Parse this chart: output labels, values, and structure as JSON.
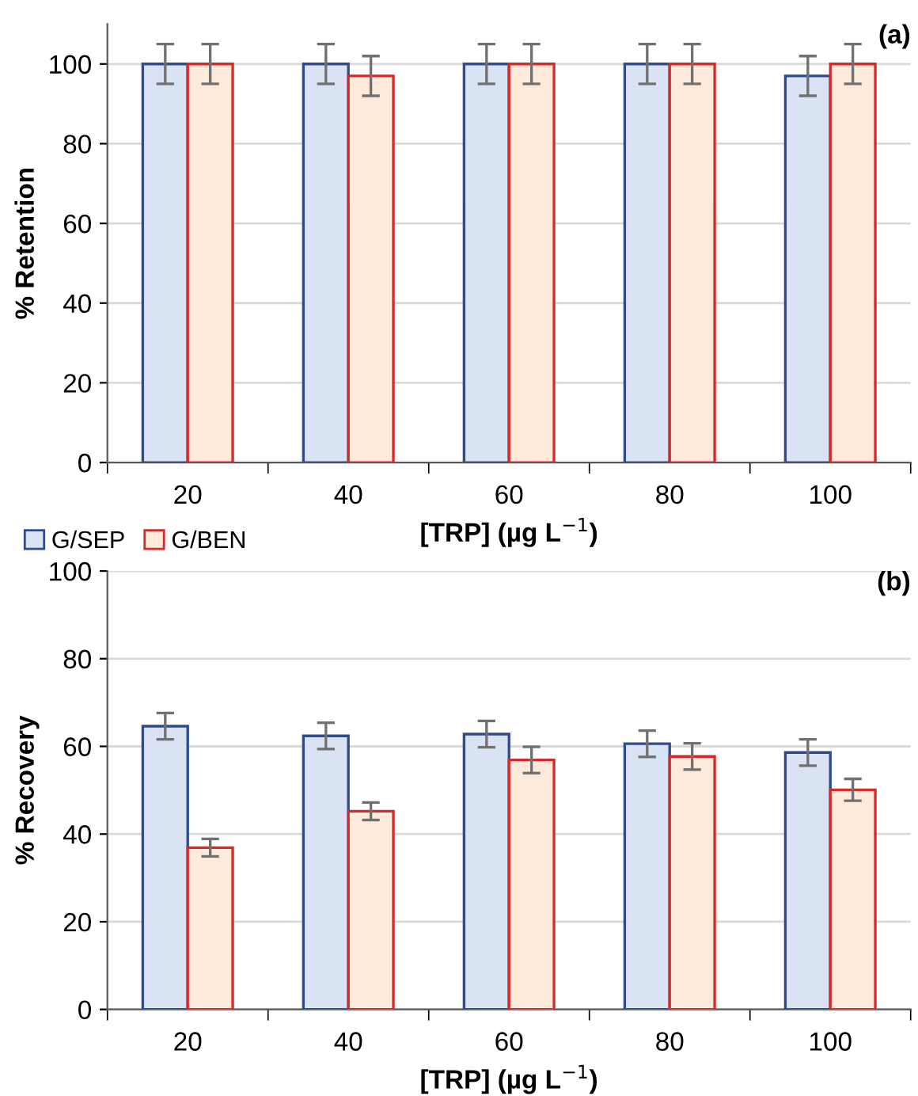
{
  "chart_data": [
    {
      "type": "bar",
      "categories": [
        "20",
        "40",
        "60",
        "80",
        "100"
      ],
      "xlabel": "[TRP] (µg L$^{−1}$)",
      "ylabel": "% Retention",
      "ylim": [
        0,
        110
      ],
      "yticks": [
        0,
        20,
        40,
        60,
        80,
        100
      ],
      "grid": "y",
      "legend": "bottom left",
      "annotations": [
        "(a)"
      ],
      "series": [
        {
          "name": "G/SEP",
          "color": "#dae3f3",
          "values": [
            100,
            100,
            100,
            100,
            97
          ],
          "errors": [
            5,
            5,
            5,
            5,
            5
          ]
        },
        {
          "name": "G/BEN",
          "color": "#fdeadb",
          "values": [
            100,
            97,
            100,
            100,
            100
          ],
          "errors": [
            5,
            5,
            5,
            5,
            5
          ]
        }
      ]
    },
    {
      "type": "bar",
      "categories": [
        "20",
        "40",
        "60",
        "80",
        "100"
      ],
      "xlabel": "[TRP] (µg L$^{−1}$)",
      "ylabel": "% Recovery",
      "ylim": [
        0,
        100
      ],
      "yticks": [
        0,
        20,
        40,
        60,
        80,
        100
      ],
      "grid": "y",
      "annotations": [
        "(b)"
      ],
      "series": [
        {
          "color": "#dae3f3",
          "values": [
            64.6,
            62.4,
            62.8,
            60.6,
            58.6
          ],
          "errors": [
            3,
            3,
            3,
            3,
            3
          ]
        },
        {
          "color": "#fdeadb",
          "values": [
            36.9,
            45.2,
            56.9,
            57.7,
            50.1
          ],
          "errors": [
            2,
            2,
            3,
            3,
            2.5
          ]
        }
      ]
    }
  ]
}
